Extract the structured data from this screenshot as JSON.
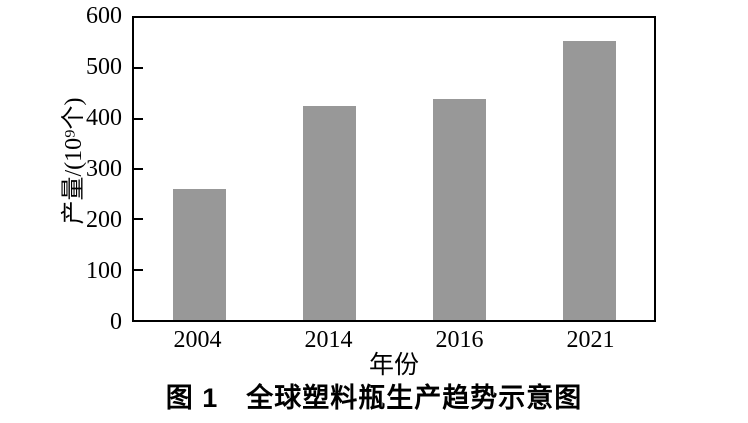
{
  "figure": {
    "caption": "图 1　全球塑料瓶生产趋势示意图"
  },
  "chart_data": {
    "type": "bar",
    "title": "图 1 全球塑料瓶生产趋势示意图",
    "categories": [
      "2004",
      "2014",
      "2016",
      "2021"
    ],
    "values": [
      260,
      425,
      440,
      555
    ],
    "xlabel": "年份",
    "ylabel": "产量/(10⁹个)",
    "ylim": [
      0,
      600
    ],
    "yticks": [
      0,
      100,
      200,
      300,
      400,
      500,
      600
    ],
    "bar_color": "#989898",
    "axis_color": "#000000",
    "text_color": "#000000",
    "background_color": "#ffffff",
    "grid": false,
    "legend": false,
    "legend_position": "none"
  }
}
